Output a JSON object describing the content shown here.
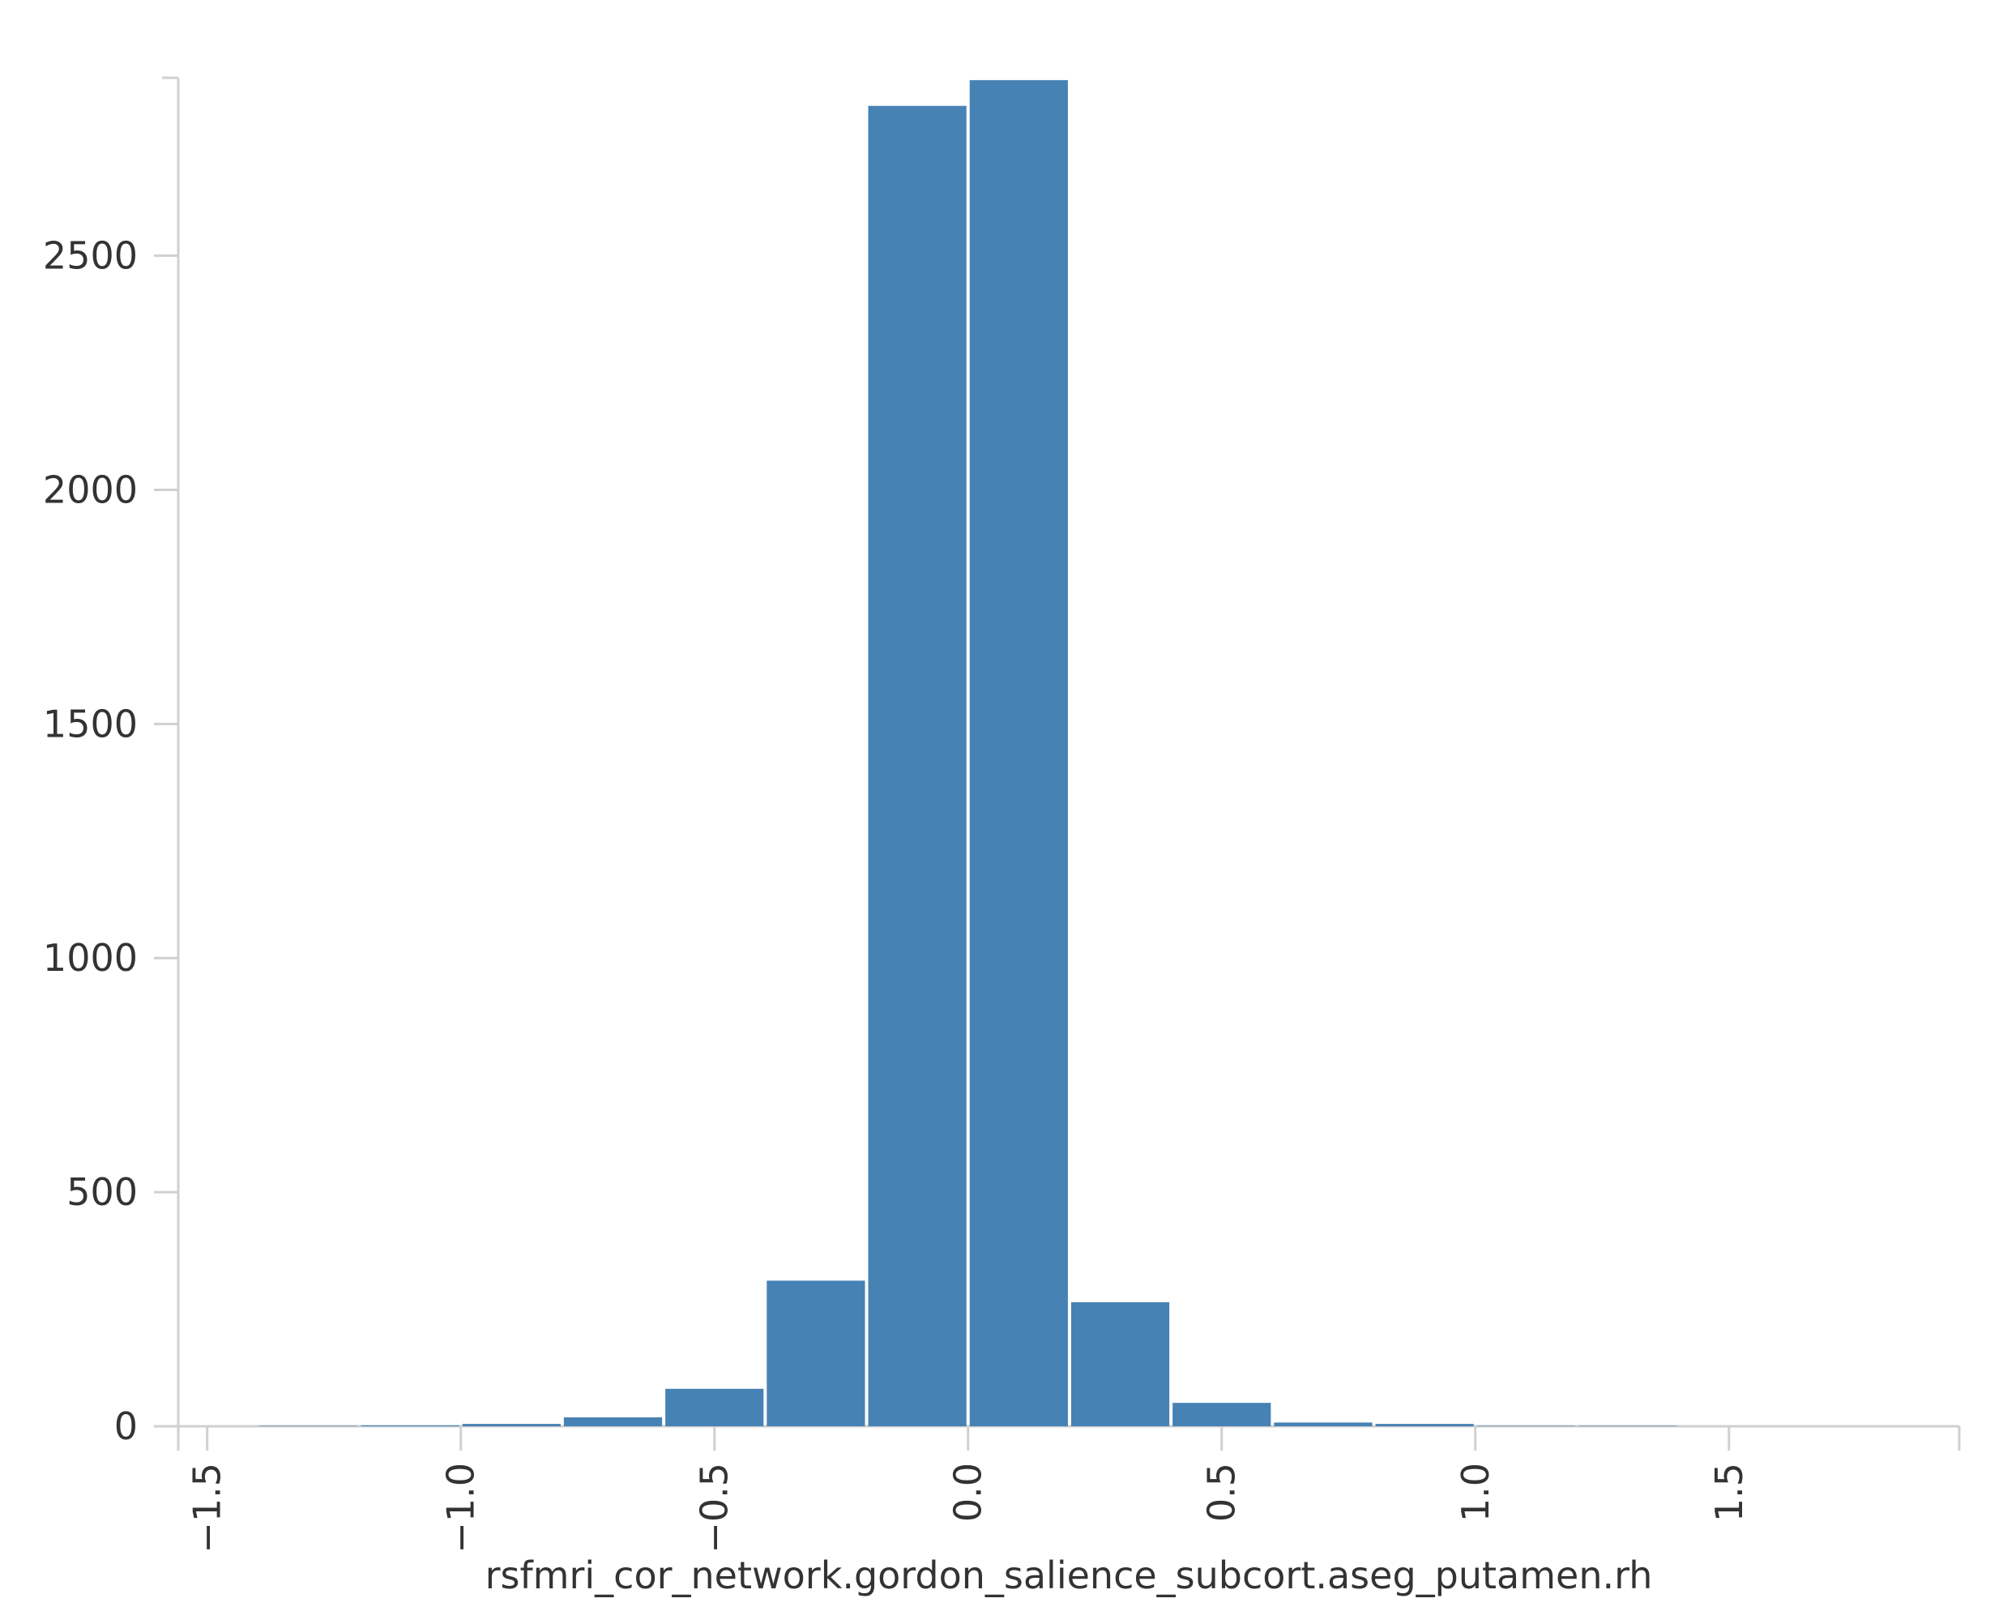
{
  "chart_data": {
    "type": "histogram",
    "x_label": "rsfmri_cor_network.gordon_salience_subcort.aseg_putamen.rh",
    "bins": [
      -1.4,
      -1.2,
      -1.0,
      -0.8,
      -0.6,
      -0.4,
      -0.2,
      0.0,
      0.2,
      0.4,
      0.6,
      0.8,
      1.0,
      1.2,
      1.4
    ],
    "values": [
      1,
      2,
      5,
      19,
      80,
      311,
      2820,
      2875,
      265,
      50,
      8,
      5,
      1,
      1
    ],
    "color": "#4682b4",
    "xlim": [
      -1.557,
      1.954
    ],
    "xticks": [
      {
        "value": -1.5,
        "label": "−1.5"
      },
      {
        "value": -1.0,
        "label": "−1.0"
      },
      {
        "value": -0.5,
        "label": "−0.5"
      },
      {
        "value": 0.0,
        "label": "0.0"
      },
      0.5,
      {
        "value": 1.0,
        "label": "1.0"
      },
      1.5
    ],
    "ylim": [
      0,
      2880
    ],
    "yticks": [
      0,
      500,
      1000,
      1500,
      2000,
      2500
    ]
  }
}
